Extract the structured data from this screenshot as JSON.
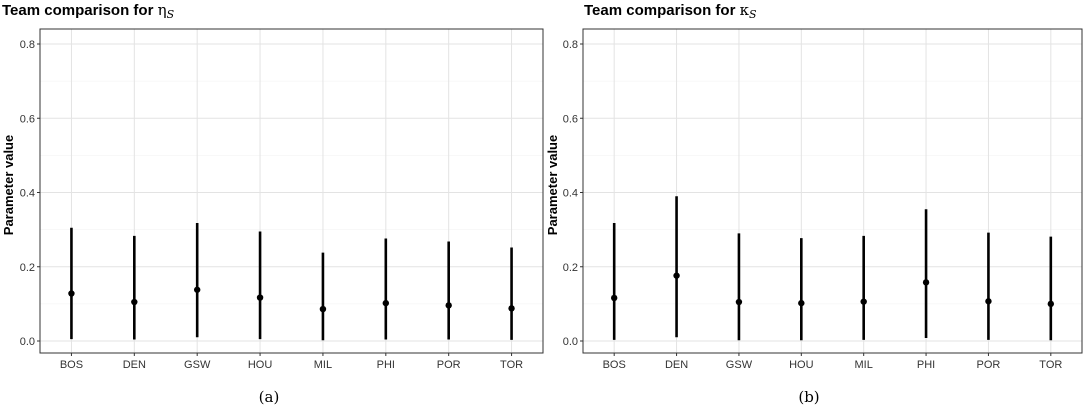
{
  "chart_data": [
    {
      "type": "scatter",
      "panel": "a",
      "title_text": "Team comparison for ",
      "title_symbol": "η",
      "title_sub": "S",
      "ylabel": "Parameter value",
      "caption": "(a)",
      "ylim": [
        0,
        0.82
      ],
      "yticks": [
        "0.0",
        "0.2",
        "0.4",
        "0.6",
        "0.8"
      ],
      "grid": true,
      "categories": [
        "BOS",
        "DEN",
        "GSW",
        "HOU",
        "MIL",
        "PHI",
        "POR",
        "TOR"
      ],
      "values": [
        0.128,
        0.105,
        0.138,
        0.117,
        0.086,
        0.102,
        0.096,
        0.088
      ],
      "lower": [
        0.005,
        0.004,
        0.01,
        0.005,
        0.002,
        0.004,
        0.004,
        0.003
      ],
      "upper": [
        0.305,
        0.283,
        0.318,
        0.295,
        0.238,
        0.276,
        0.268,
        0.252
      ]
    },
    {
      "type": "scatter",
      "panel": "b",
      "title_text": "Team comparison for ",
      "title_symbol": "κ",
      "title_sub": "S",
      "ylabel": "Parameter value",
      "caption": "(b)",
      "ylim": [
        0,
        0.82
      ],
      "yticks": [
        "0.0",
        "0.2",
        "0.4",
        "0.6",
        "0.8"
      ],
      "grid": true,
      "categories": [
        "BOS",
        "DEN",
        "GSW",
        "HOU",
        "MIL",
        "PHI",
        "POR",
        "TOR"
      ],
      "values": [
        0.116,
        0.176,
        0.105,
        0.102,
        0.106,
        0.158,
        0.107,
        0.1
      ],
      "lower": [
        0.003,
        0.01,
        0.002,
        0.002,
        0.003,
        0.008,
        0.003,
        0.002
      ],
      "upper": [
        0.318,
        0.39,
        0.29,
        0.277,
        0.283,
        0.355,
        0.292,
        0.281
      ]
    }
  ]
}
